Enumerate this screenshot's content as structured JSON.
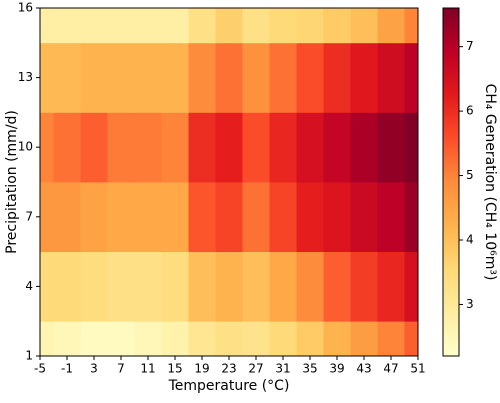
{
  "chart_data": {
    "type": "heatmap",
    "xlabel": "Temperature (°C)",
    "ylabel": "Precipitation (mm/d)",
    "colorbar_label": "CH₄ Generation (CH₄ 10⁶m³)",
    "colormap": "YlOrRd",
    "x": [
      -5,
      -1,
      3,
      7,
      11,
      15,
      19,
      23,
      27,
      31,
      35,
      39,
      43,
      47,
      51
    ],
    "y": [
      1,
      4,
      7,
      10,
      13,
      16
    ],
    "z": [
      [
        2.6,
        2.5,
        2.4,
        2.4,
        2.5,
        2.7,
        3.1,
        3.3,
        3.2,
        3.5,
        3.8,
        4.2,
        4.6,
        5.0,
        5.4
      ],
      [
        3.5,
        3.5,
        3.4,
        3.3,
        3.3,
        3.4,
        4.0,
        4.2,
        4.0,
        4.4,
        4.9,
        5.4,
        5.8,
        6.1,
        6.5
      ],
      [
        4.7,
        4.7,
        4.5,
        4.4,
        4.4,
        4.4,
        5.5,
        5.7,
        5.2,
        5.7,
        6.2,
        6.4,
        6.7,
        6.9,
        7.3
      ],
      [
        5.0,
        5.2,
        5.4,
        5.1,
        5.1,
        5.0,
        6.0,
        6.2,
        5.6,
        6.1,
        6.5,
        6.8,
        7.1,
        7.4,
        7.6
      ],
      [
        4.1,
        4.1,
        4.2,
        4.2,
        4.2,
        4.2,
        4.9,
        5.2,
        4.8,
        5.2,
        5.6,
        6.0,
        6.3,
        6.6,
        6.9
      ],
      [
        2.8,
        2.8,
        2.8,
        2.8,
        2.8,
        2.8,
        3.3,
        3.7,
        3.3,
        3.5,
        3.6,
        3.8,
        4.0,
        4.5,
        5.0
      ]
    ],
    "xlim": [
      -5,
      51
    ],
    "xticks": [
      -5,
      -1,
      3,
      7,
      11,
      15,
      19,
      23,
      27,
      31,
      35,
      39,
      43,
      47,
      51
    ],
    "ylim": [
      1,
      16
    ],
    "yticks": [
      1,
      4,
      7,
      10,
      13,
      16
    ],
    "clim": [
      2.2,
      7.6
    ],
    "cticks": [
      3,
      4,
      5,
      6,
      7
    ]
  }
}
